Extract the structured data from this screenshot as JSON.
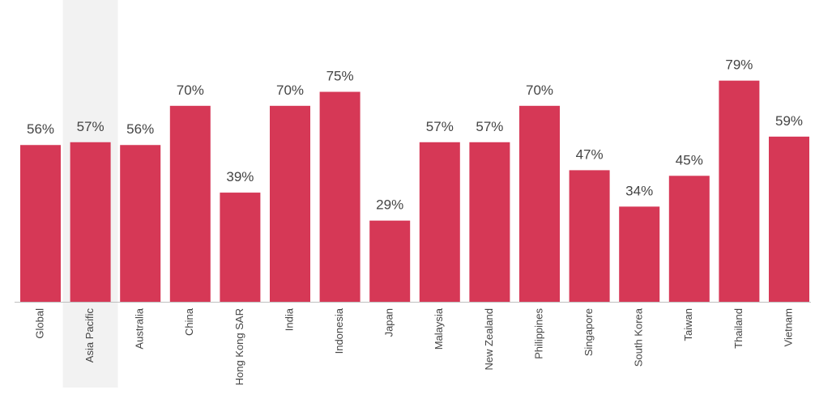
{
  "chart_data": {
    "type": "bar",
    "title": "",
    "xlabel": "",
    "ylabel": "",
    "categories": [
      "Global",
      "Asia Pacific",
      "Australia",
      "China",
      "Hong Kong SAR",
      "India",
      "Indonesia",
      "Japan",
      "Malaysia",
      "New Zealand",
      "Philippines",
      "Singapore",
      "South Korea",
      "Taiwan",
      "Thailand",
      "Vietnam"
    ],
    "values": [
      56,
      57,
      56,
      70,
      39,
      70,
      75,
      29,
      57,
      57,
      70,
      47,
      34,
      45,
      79,
      59
    ],
    "value_labels": [
      "56%",
      "57%",
      "56%",
      "70%",
      "39%",
      "70%",
      "75%",
      "29%",
      "57%",
      "57%",
      "70%",
      "47%",
      "34%",
      "45%",
      "79%",
      "59%"
    ],
    "unit": "%",
    "ylim": [
      0,
      100
    ],
    "highlighted_category": "Asia Pacific",
    "grid": false,
    "legend": "none",
    "colors": {
      "bar": "#d63856",
      "highlight_band": "#f2f2f2",
      "axis": "#bfbfbf",
      "text": "#444444"
    }
  }
}
